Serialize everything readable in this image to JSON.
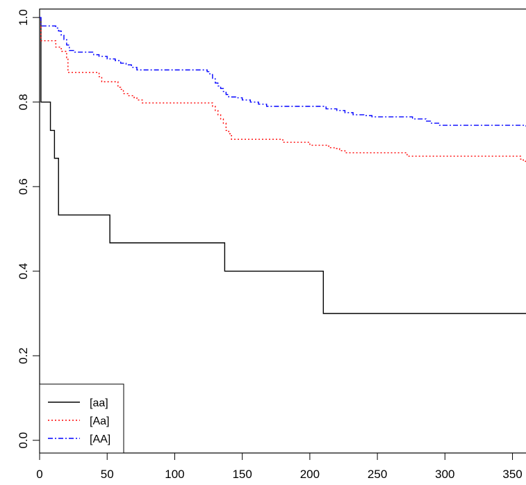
{
  "chart_data": {
    "type": "line",
    "title": "",
    "xlabel": "",
    "ylabel": "",
    "xlim": [
      0,
      360
    ],
    "ylim": [
      -0.03,
      1.02
    ],
    "x_ticks": [
      0,
      50,
      100,
      150,
      200,
      250,
      300,
      350
    ],
    "y_ticks": [
      0.0,
      0.2,
      0.4,
      0.6,
      0.8,
      1.0
    ],
    "x_tick_labels": [
      "0",
      "50",
      "100",
      "150",
      "200",
      "250",
      "300",
      "350"
    ],
    "y_tick_labels": [
      "0.0",
      "0.2",
      "0.4",
      "0.6",
      "0.8",
      "1.0"
    ],
    "grid": false,
    "legend_position": "bottom-left",
    "step": true,
    "series": [
      {
        "name": "[aa]",
        "color": "#000000",
        "line_style": "solid",
        "points": [
          [
            0,
            1.0
          ],
          [
            1,
            0.8
          ],
          [
            8,
            0.733
          ],
          [
            11,
            0.667
          ],
          [
            14,
            0.533
          ],
          [
            52,
            0.467
          ],
          [
            137,
            0.4
          ],
          [
            210,
            0.3
          ],
          [
            360,
            0.3
          ]
        ]
      },
      {
        "name": "[Aa]",
        "color": "#ff0000",
        "line_style": "dotted",
        "points": [
          [
            0,
            1.0
          ],
          [
            1,
            0.945
          ],
          [
            10,
            0.945
          ],
          [
            12,
            0.93
          ],
          [
            16,
            0.92
          ],
          [
            20,
            0.905
          ],
          [
            21,
            0.87
          ],
          [
            40,
            0.87
          ],
          [
            44,
            0.86
          ],
          [
            46,
            0.848
          ],
          [
            55,
            0.848
          ],
          [
            58,
            0.835
          ],
          [
            60,
            0.83
          ],
          [
            62,
            0.82
          ],
          [
            66,
            0.815
          ],
          [
            70,
            0.81
          ],
          [
            72,
            0.805
          ],
          [
            76,
            0.798
          ],
          [
            126,
            0.798
          ],
          [
            128,
            0.79
          ],
          [
            130,
            0.78
          ],
          [
            132,
            0.77
          ],
          [
            134,
            0.76
          ],
          [
            136,
            0.75
          ],
          [
            138,
            0.733
          ],
          [
            140,
            0.725
          ],
          [
            142,
            0.712
          ],
          [
            178,
            0.712
          ],
          [
            180,
            0.705
          ],
          [
            198,
            0.705
          ],
          [
            200,
            0.698
          ],
          [
            210,
            0.698
          ],
          [
            214,
            0.692
          ],
          [
            218,
            0.69
          ],
          [
            222,
            0.685
          ],
          [
            226,
            0.68
          ],
          [
            270,
            0.68
          ],
          [
            272,
            0.672
          ],
          [
            354,
            0.672
          ],
          [
            356,
            0.665
          ],
          [
            358,
            0.66
          ],
          [
            360,
            0.66
          ]
        ]
      },
      {
        "name": "[AA]",
        "color": "#0000ff",
        "line_style": "dashdot",
        "points": [
          [
            0,
            1.0
          ],
          [
            1,
            0.98
          ],
          [
            10,
            0.98
          ],
          [
            12,
            0.975
          ],
          [
            14,
            0.968
          ],
          [
            16,
            0.958
          ],
          [
            18,
            0.948
          ],
          [
            20,
            0.935
          ],
          [
            22,
            0.922
          ],
          [
            26,
            0.918
          ],
          [
            40,
            0.912
          ],
          [
            44,
            0.908
          ],
          [
            50,
            0.902
          ],
          [
            56,
            0.898
          ],
          [
            60,
            0.892
          ],
          [
            64,
            0.888
          ],
          [
            68,
            0.882
          ],
          [
            72,
            0.876
          ],
          [
            120,
            0.876
          ],
          [
            124,
            0.872
          ],
          [
            126,
            0.865
          ],
          [
            128,
            0.855
          ],
          [
            130,
            0.845
          ],
          [
            132,
            0.838
          ],
          [
            134,
            0.832
          ],
          [
            136,
            0.825
          ],
          [
            138,
            0.818
          ],
          [
            140,
            0.812
          ],
          [
            146,
            0.81
          ],
          [
            150,
            0.805
          ],
          [
            156,
            0.8
          ],
          [
            162,
            0.795
          ],
          [
            168,
            0.79
          ],
          [
            208,
            0.79
          ],
          [
            212,
            0.784
          ],
          [
            220,
            0.78
          ],
          [
            226,
            0.775
          ],
          [
            232,
            0.77
          ],
          [
            240,
            0.768
          ],
          [
            246,
            0.765
          ],
          [
            270,
            0.765
          ],
          [
            276,
            0.76
          ],
          [
            286,
            0.755
          ],
          [
            290,
            0.75
          ],
          [
            296,
            0.745
          ],
          [
            360,
            0.742
          ]
        ]
      }
    ]
  }
}
